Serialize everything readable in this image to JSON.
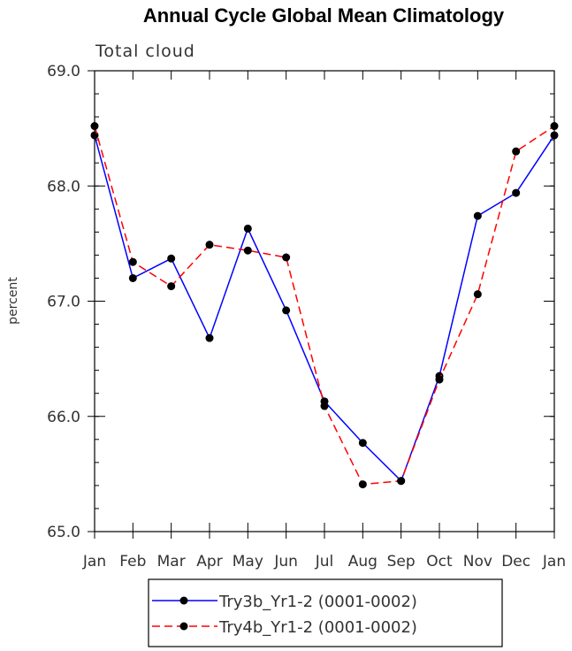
{
  "chart_data": {
    "type": "line",
    "title": "Annual Cycle Global Mean Climatology",
    "subtitle": "Total cloud",
    "xlabel": "",
    "ylabel": "percent",
    "ylim": [
      65.0,
      69.0
    ],
    "yticks": [
      "65.0",
      "66.0",
      "67.0",
      "68.0",
      "69.0"
    ],
    "categories": [
      "Jan",
      "Feb",
      "Mar",
      "Apr",
      "May",
      "Jun",
      "Jul",
      "Aug",
      "Sep",
      "Oct",
      "Nov",
      "Dec",
      "Jan"
    ],
    "series": [
      {
        "name": "Try3b_Yr1-2 (0001-0002)",
        "color": "#0000ff",
        "dash": "solid",
        "values": [
          68.44,
          67.2,
          67.37,
          66.68,
          67.63,
          66.92,
          66.13,
          65.77,
          65.44,
          66.35,
          67.74,
          67.94,
          68.44
        ]
      },
      {
        "name": "Try4b_Yr1-2 (0001-0002)",
        "color": "#ff0000",
        "dash": "dashed",
        "values": [
          68.52,
          67.34,
          67.13,
          67.49,
          67.44,
          67.38,
          66.09,
          65.41,
          65.44,
          66.32,
          67.06,
          68.3,
          68.52
        ]
      }
    ],
    "grid": false,
    "legend_position": "bottom"
  }
}
